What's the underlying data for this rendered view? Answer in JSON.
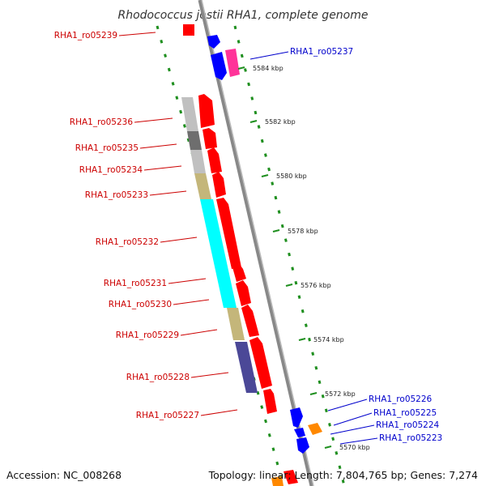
{
  "title": "Rhodococcus jostii RHA1, complete genome",
  "accession": "Accession: NC_008268",
  "topology": "Topology: linear; Length: 7,804,765 bp; Genes: 7,274",
  "colors": {
    "red": "#ff0000",
    "blue": "#0000ff",
    "magenta": "#ff3399",
    "lightgray": "#c0c0c0",
    "darkgray": "#6e6e6e",
    "tan": "#c4b67a",
    "cyan": "#00ffff",
    "navy": "#4b4897",
    "orange": "#ff8800",
    "green": "#1f8f1f",
    "redlabel": "#cc0000",
    "bluelabel": "#0000cc"
  },
  "ticks": [
    {
      "label": "5584 kbp"
    },
    {
      "label": "5582 kbp"
    },
    {
      "label": "5580 kbp"
    },
    {
      "label": "5578 kbp"
    },
    {
      "label": "5576 kbp"
    },
    {
      "label": "5574 kbp"
    },
    {
      "label": "5572 kbp"
    },
    {
      "label": "5570 kbp"
    }
  ],
  "genes_left": [
    {
      "label": "RHA1_ro05239"
    },
    {
      "label": "RHA1_ro05236"
    },
    {
      "label": "RHA1_ro05235"
    },
    {
      "label": "RHA1_ro05234"
    },
    {
      "label": "RHA1_ro05233"
    },
    {
      "label": "RHA1_ro05232"
    },
    {
      "label": "RHA1_ro05231"
    },
    {
      "label": "RHA1_ro05230"
    },
    {
      "label": "RHA1_ro05229"
    },
    {
      "label": "RHA1_ro05228"
    },
    {
      "label": "RHA1_ro05227"
    }
  ],
  "genes_right": [
    {
      "label": "RHA1_ro05237"
    },
    {
      "label": "RHA1_ro05226"
    },
    {
      "label": "RHA1_ro05225"
    },
    {
      "label": "RHA1_ro05224"
    },
    {
      "label": "RHA1_ro05223"
    }
  ]
}
